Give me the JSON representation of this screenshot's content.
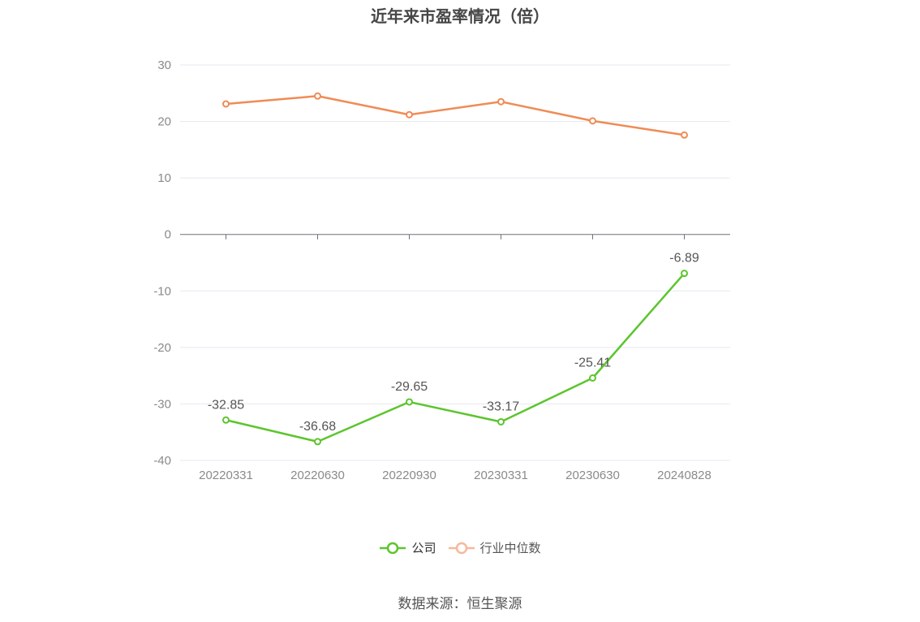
{
  "chart_data": {
    "type": "line",
    "title": "近年来市盈率情况（倍）",
    "categories": [
      "20220331",
      "20220630",
      "20220930",
      "20230331",
      "20230630",
      "20240828"
    ],
    "series": [
      {
        "name": "公司",
        "color": "#5cc52e",
        "values": [
          -32.85,
          -36.68,
          -29.65,
          -33.17,
          -25.41,
          -6.89
        ],
        "labels_shown": true
      },
      {
        "name": "行业中位数",
        "color": "#f08b55",
        "legend_color": "#f7b89a",
        "values": [
          23.1,
          24.5,
          21.2,
          23.5,
          20.1,
          17.6
        ],
        "labels_shown": false
      }
    ],
    "ylim": [
      -40,
      30
    ],
    "yticks": [
      30,
      20,
      10,
      0,
      -10,
      -20,
      -30,
      -40
    ],
    "grid": true,
    "legend_position": "bottom-center",
    "source": "数据来源：恒生聚源"
  }
}
